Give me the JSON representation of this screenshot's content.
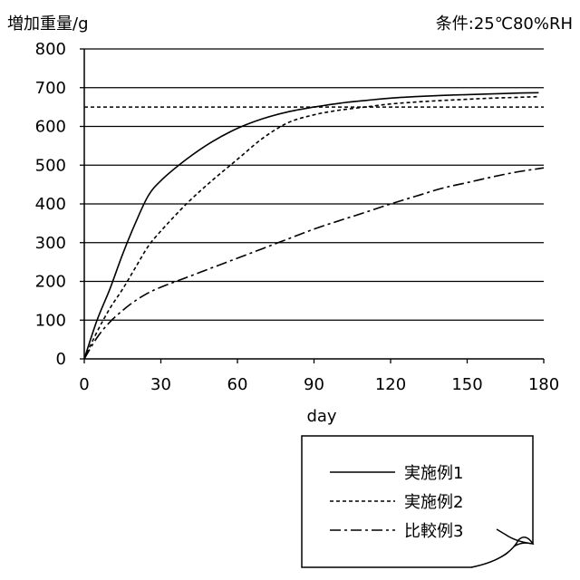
{
  "chart_data": {
    "type": "line",
    "title": "",
    "ylabel": "増加重量/g",
    "xlabel": "day",
    "condition": "条件:25℃80%RH",
    "xlim": [
      0,
      180
    ],
    "ylim": [
      0,
      800
    ],
    "xticks": [
      "0",
      "30",
      "60",
      "90",
      "120",
      "150",
      "180"
    ],
    "yticks": [
      "0",
      "100",
      "200",
      "300",
      "400",
      "500",
      "600",
      "700",
      "800"
    ],
    "grid": "horizontal",
    "legend_position": "bottom-right",
    "reference_line": {
      "y": 650,
      "style": "dashed"
    },
    "series": [
      {
        "name": "実施例1",
        "style": "solid",
        "x": [
          0,
          5,
          10,
          15,
          20,
          25,
          30,
          40,
          50,
          60,
          70,
          80,
          90,
          100,
          110,
          120,
          130,
          140,
          150,
          160,
          170,
          178
        ],
        "y": [
          0,
          100,
          180,
          270,
          350,
          420,
          460,
          515,
          560,
          595,
          620,
          638,
          650,
          660,
          667,
          673,
          677,
          680,
          682,
          684,
          686,
          687
        ]
      },
      {
        "name": "実施例2",
        "style": "dashed",
        "x": [
          0,
          5,
          10,
          15,
          20,
          25,
          30,
          40,
          50,
          60,
          70,
          80,
          90,
          100,
          110,
          120,
          130,
          140,
          150,
          160,
          170,
          178
        ],
        "y": [
          0,
          70,
          130,
          180,
          235,
          290,
          330,
          400,
          460,
          515,
          570,
          610,
          630,
          642,
          650,
          658,
          663,
          667,
          670,
          673,
          675,
          677
        ]
      },
      {
        "name": "比較例3",
        "style": "dashdot",
        "x": [
          0,
          5,
          10,
          15,
          20,
          25,
          30,
          40,
          50,
          60,
          70,
          80,
          90,
          100,
          110,
          120,
          130,
          140,
          150,
          160,
          170,
          180
        ],
        "y": [
          0,
          55,
          95,
          125,
          150,
          170,
          185,
          210,
          235,
          260,
          285,
          310,
          335,
          357,
          378,
          400,
          420,
          440,
          455,
          470,
          483,
          493
        ]
      }
    ]
  }
}
